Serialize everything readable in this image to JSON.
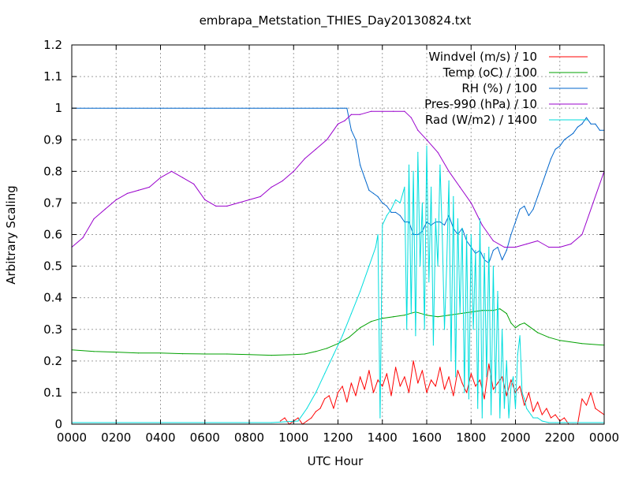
{
  "chart_data": {
    "type": "line",
    "title": "embrapa_Metstation_THIES_Day20130824.txt",
    "xlabel": "UTC Hour",
    "ylabel": "Arbitrary Scaling",
    "xlim": [
      0,
      24
    ],
    "ylim": [
      0,
      1.2
    ],
    "grid": true,
    "legend_position": "top-right",
    "x_ticks": [
      {
        "value": 0,
        "label": "0000"
      },
      {
        "value": 2,
        "label": "0200"
      },
      {
        "value": 4,
        "label": "0400"
      },
      {
        "value": 6,
        "label": "0600"
      },
      {
        "value": 8,
        "label": "0800"
      },
      {
        "value": 10,
        "label": "1000"
      },
      {
        "value": 12,
        "label": "1200"
      },
      {
        "value": 14,
        "label": "1400"
      },
      {
        "value": 16,
        "label": "1600"
      },
      {
        "value": 18,
        "label": "1800"
      },
      {
        "value": 20,
        "label": "2000"
      },
      {
        "value": 22,
        "label": "2200"
      },
      {
        "value": 24,
        "label": "0000"
      }
    ],
    "y_ticks": [
      {
        "value": 0,
        "label": "0"
      },
      {
        "value": 0.1,
        "label": "0.1"
      },
      {
        "value": 0.2,
        "label": "0.2"
      },
      {
        "value": 0.3,
        "label": "0.3"
      },
      {
        "value": 0.4,
        "label": "0.4"
      },
      {
        "value": 0.5,
        "label": "0.5"
      },
      {
        "value": 0.6,
        "label": "0.6"
      },
      {
        "value": 0.7,
        "label": "0.7"
      },
      {
        "value": 0.8,
        "label": "0.8"
      },
      {
        "value": 0.9,
        "label": "0.9"
      },
      {
        "value": 1,
        "label": "1"
      },
      {
        "value": 1.1,
        "label": "1.1"
      },
      {
        "value": 1.2,
        "label": "1.2"
      }
    ],
    "series": [
      {
        "name": "Windvel (m/s) / 10",
        "color": "#ff0000",
        "x": [
          9.4,
          9.6,
          9.8,
          10.0,
          10.2,
          10.4,
          10.6,
          10.8,
          11.0,
          11.2,
          11.4,
          11.6,
          11.8,
          12.0,
          12.2,
          12.4,
          12.6,
          12.8,
          13.0,
          13.2,
          13.4,
          13.6,
          13.8,
          14.0,
          14.2,
          14.4,
          14.6,
          14.8,
          15.0,
          15.2,
          15.4,
          15.6,
          15.8,
          16.0,
          16.2,
          16.4,
          16.6,
          16.8,
          17.0,
          17.2,
          17.4,
          17.6,
          17.8,
          18.0,
          18.2,
          18.4,
          18.6,
          18.8,
          19.0,
          19.2,
          19.4,
          19.6,
          19.8,
          20.0,
          20.2,
          20.4,
          20.6,
          20.8,
          21.0,
          21.2,
          21.4,
          21.6,
          21.8,
          22.0,
          22.2,
          22.4,
          22.6,
          22.8,
          23.0,
          23.2,
          23.4,
          23.6,
          23.8,
          24.0
        ],
        "y": [
          0.01,
          0.02,
          0.0,
          0.01,
          0.02,
          0.0,
          0.01,
          0.02,
          0.04,
          0.05,
          0.08,
          0.09,
          0.05,
          0.1,
          0.12,
          0.07,
          0.13,
          0.09,
          0.15,
          0.11,
          0.17,
          0.1,
          0.14,
          0.12,
          0.16,
          0.09,
          0.18,
          0.12,
          0.15,
          0.1,
          0.2,
          0.13,
          0.17,
          0.1,
          0.14,
          0.12,
          0.18,
          0.11,
          0.15,
          0.09,
          0.17,
          0.13,
          0.1,
          0.16,
          0.12,
          0.14,
          0.08,
          0.19,
          0.11,
          0.13,
          0.15,
          0.09,
          0.14,
          0.1,
          0.12,
          0.06,
          0.1,
          0.04,
          0.07,
          0.03,
          0.05,
          0.02,
          0.03,
          0.01,
          0.02,
          0.0,
          0.0,
          0.0,
          0.08,
          0.06,
          0.1,
          0.05,
          0.04,
          0.03
        ]
      },
      {
        "name": "Temp (oC) / 100",
        "color": "#00a000",
        "x": [
          0,
          1,
          2,
          3,
          4,
          5,
          6,
          7,
          8,
          9,
          10,
          10.5,
          11,
          11.5,
          12,
          12.5,
          13,
          13.5,
          14,
          14.5,
          15,
          15.5,
          16,
          16.5,
          17,
          17.5,
          18,
          18.5,
          19,
          19.3,
          19.6,
          19.8,
          20,
          20.2,
          20.4,
          20.6,
          21,
          21.5,
          22,
          23,
          24
        ],
        "y": [
          0.235,
          0.23,
          0.228,
          0.225,
          0.225,
          0.223,
          0.222,
          0.222,
          0.22,
          0.218,
          0.22,
          0.222,
          0.23,
          0.24,
          0.255,
          0.275,
          0.305,
          0.325,
          0.335,
          0.34,
          0.345,
          0.355,
          0.345,
          0.34,
          0.345,
          0.35,
          0.355,
          0.36,
          0.36,
          0.365,
          0.35,
          0.32,
          0.305,
          0.315,
          0.32,
          0.31,
          0.29,
          0.275,
          0.265,
          0.255,
          0.25
        ]
      },
      {
        "name": "RH (%) / 100",
        "color": "#0066cc",
        "x": [
          0,
          4,
          8,
          12,
          12.2,
          12.4,
          12.6,
          12.8,
          13.0,
          13.2,
          13.4,
          13.6,
          13.8,
          14.0,
          14.2,
          14.4,
          14.6,
          14.8,
          15.0,
          15.2,
          15.4,
          15.6,
          15.8,
          16.0,
          16.2,
          16.4,
          16.6,
          16.8,
          17.0,
          17.2,
          17.4,
          17.6,
          17.8,
          18.0,
          18.2,
          18.4,
          18.6,
          18.8,
          19.0,
          19.2,
          19.4,
          19.6,
          19.8,
          20.0,
          20.2,
          20.4,
          20.6,
          20.8,
          21.0,
          21.2,
          21.4,
          21.6,
          21.8,
          22.0,
          22.2,
          22.4,
          22.6,
          22.8,
          23.0,
          23.2,
          23.4,
          23.6,
          23.8,
          24.0
        ],
        "y": [
          1.0,
          1.0,
          1.0,
          1.0,
          1.0,
          1.0,
          0.93,
          0.9,
          0.82,
          0.78,
          0.74,
          0.73,
          0.72,
          0.7,
          0.69,
          0.67,
          0.67,
          0.66,
          0.64,
          0.64,
          0.6,
          0.6,
          0.61,
          0.64,
          0.63,
          0.64,
          0.64,
          0.63,
          0.66,
          0.62,
          0.6,
          0.62,
          0.58,
          0.56,
          0.54,
          0.55,
          0.52,
          0.51,
          0.55,
          0.56,
          0.52,
          0.55,
          0.6,
          0.64,
          0.68,
          0.69,
          0.66,
          0.68,
          0.72,
          0.76,
          0.8,
          0.84,
          0.87,
          0.88,
          0.9,
          0.91,
          0.92,
          0.94,
          0.95,
          0.97,
          0.95,
          0.95,
          0.93,
          0.93
        ]
      },
      {
        "name": "Pres-990 (hPa) / 10",
        "color": "#9900cc",
        "x": [
          0,
          0.5,
          1,
          1.5,
          2,
          2.5,
          3,
          3.5,
          4,
          4.5,
          5,
          5.5,
          6,
          6.5,
          7,
          7.5,
          8,
          8.5,
          9,
          9.5,
          10,
          10.5,
          11,
          11.5,
          12,
          12.3,
          12.6,
          13,
          13.5,
          14,
          14.5,
          15,
          15.3,
          15.6,
          16,
          16.5,
          17,
          17.5,
          18,
          18.5,
          19,
          19.5,
          20,
          20.5,
          21,
          21.5,
          22,
          22.5,
          23,
          23.5,
          24
        ],
        "y": [
          0.56,
          0.59,
          0.65,
          0.68,
          0.71,
          0.73,
          0.74,
          0.75,
          0.78,
          0.8,
          0.78,
          0.76,
          0.71,
          0.69,
          0.69,
          0.7,
          0.71,
          0.72,
          0.75,
          0.77,
          0.8,
          0.84,
          0.87,
          0.9,
          0.95,
          0.96,
          0.98,
          0.98,
          0.99,
          0.99,
          0.99,
          0.99,
          0.97,
          0.93,
          0.9,
          0.86,
          0.8,
          0.75,
          0.7,
          0.63,
          0.58,
          0.56,
          0.56,
          0.57,
          0.58,
          0.56,
          0.56,
          0.57,
          0.6,
          0.7,
          0.8
        ]
      },
      {
        "name": "Rad (W/m2) / 1400",
        "color": "#00dddd",
        "x": [
          0,
          9,
          10.2,
          10.6,
          11.0,
          11.4,
          11.8,
          12.2,
          12.6,
          13.0,
          13.4,
          13.7,
          13.8,
          13.9,
          14.0,
          14.2,
          14.4,
          14.6,
          14.8,
          15.0,
          15.1,
          15.2,
          15.3,
          15.4,
          15.5,
          15.6,
          15.7,
          15.8,
          15.9,
          16.0,
          16.1,
          16.2,
          16.3,
          16.4,
          16.5,
          16.6,
          16.7,
          16.8,
          16.9,
          17.0,
          17.1,
          17.2,
          17.3,
          17.4,
          17.5,
          17.6,
          17.7,
          17.8,
          17.9,
          18.0,
          18.1,
          18.2,
          18.3,
          18.4,
          18.5,
          18.6,
          18.7,
          18.8,
          18.9,
          19.0,
          19.1,
          19.2,
          19.3,
          19.4,
          19.5,
          19.6,
          19.7,
          19.8,
          19.9,
          20.0,
          20.1,
          20.2,
          20.3,
          20.4,
          20.5,
          20.6,
          20.7,
          20.8,
          21.0,
          21.2,
          21.5,
          21.8,
          22.0,
          22.2,
          24.0
        ],
        "y": [
          0.005,
          0.005,
          0.01,
          0.05,
          0.1,
          0.16,
          0.22,
          0.28,
          0.35,
          0.42,
          0.5,
          0.56,
          0.6,
          0.02,
          0.63,
          0.66,
          0.68,
          0.71,
          0.7,
          0.75,
          0.3,
          0.82,
          0.35,
          0.8,
          0.28,
          0.86,
          0.5,
          0.7,
          0.3,
          0.88,
          0.45,
          0.75,
          0.25,
          0.65,
          0.5,
          0.82,
          0.6,
          0.3,
          0.5,
          0.77,
          0.2,
          0.72,
          0.15,
          0.65,
          0.35,
          0.62,
          0.1,
          0.6,
          0.08,
          0.6,
          0.3,
          0.55,
          0.05,
          0.65,
          0.02,
          0.54,
          0.15,
          0.56,
          0.03,
          0.5,
          0.1,
          0.42,
          0.02,
          0.3,
          0.05,
          0.2,
          0.02,
          0.12,
          0.15,
          0.05,
          0.22,
          0.28,
          0.1,
          0.08,
          0.05,
          0.04,
          0.03,
          0.02,
          0.02,
          0.01,
          0.005,
          0.005,
          0.005,
          0.005,
          0.005
        ]
      }
    ]
  }
}
